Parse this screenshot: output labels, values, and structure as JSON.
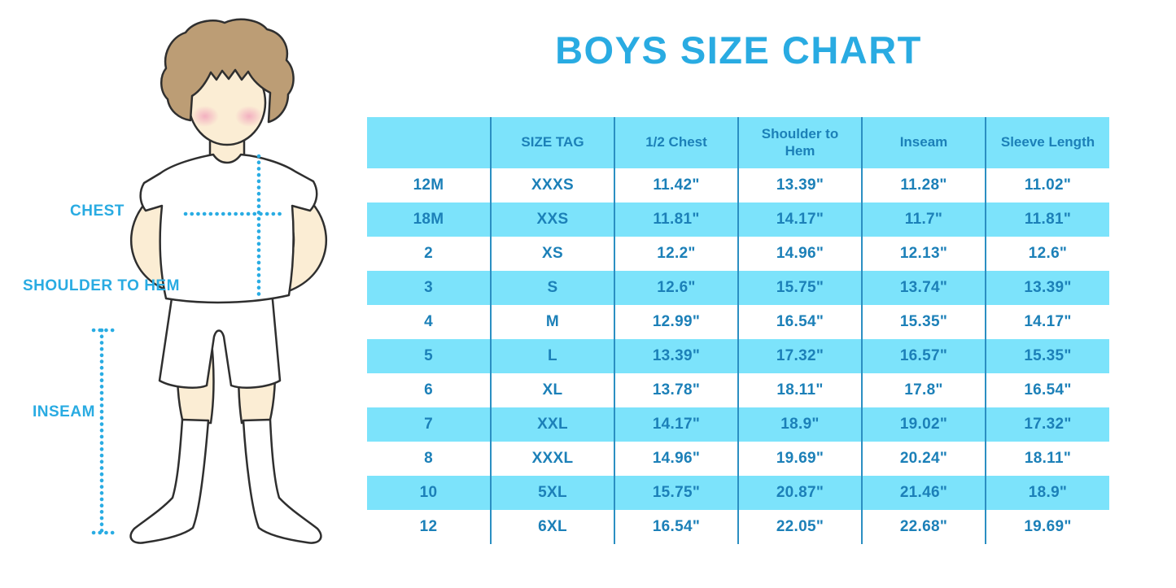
{
  "title": "BOYS SIZE CHART",
  "colors": {
    "title_blue": "#29ABE2",
    "row_cyan": "#7CE3FB",
    "table_text_blue": "#1C80B8",
    "grid_line_blue": "#2B8FC2",
    "dotted_line_cyan": "#29ACE3",
    "skin": "#FBEDD4",
    "hair_brown": "#BC9D75",
    "blush_pink": "#F2A9BE",
    "outline": "#2F2F2F"
  },
  "figure": {
    "illustration": "boy-front-view-tshirt-shorts-socks",
    "labels": {
      "chest": "CHEST",
      "shoulder_to_hem": "SHOULDER TO HEM",
      "inseam": "INSEAM"
    }
  },
  "chart_data": {
    "type": "table",
    "title": "BOYS SIZE CHART",
    "columns": [
      "",
      "SIZE TAG",
      "1/2 Chest",
      "Shoulder to Hem",
      "Inseam",
      "Sleeve Length"
    ],
    "rows": [
      [
        "12M",
        "XXXS",
        "11.42\"",
        "13.39\"",
        "11.28\"",
        "11.02\""
      ],
      [
        "18M",
        "XXS",
        "11.81\"",
        "14.17\"",
        "11.7\"",
        "11.81\""
      ],
      [
        "2",
        "XS",
        "12.2\"",
        "14.96\"",
        "12.13\"",
        "12.6\""
      ],
      [
        "3",
        "S",
        "12.6\"",
        "15.75\"",
        "13.74\"",
        "13.39\""
      ],
      [
        "4",
        "M",
        "12.99\"",
        "16.54\"",
        "15.35\"",
        "14.17\""
      ],
      [
        "5",
        "L",
        "13.39\"",
        "17.32\"",
        "16.57\"",
        "15.35\""
      ],
      [
        "6",
        "XL",
        "13.78\"",
        "18.11\"",
        "17.8\"",
        "16.54\""
      ],
      [
        "7",
        "XXL",
        "14.17\"",
        "18.9\"",
        "19.02\"",
        "17.32\""
      ],
      [
        "8",
        "XXXL",
        "14.96\"",
        "19.69\"",
        "20.24\"",
        "18.11\""
      ],
      [
        "10",
        "5XL",
        "15.75\"",
        "20.87\"",
        "21.46\"",
        "18.9\""
      ],
      [
        "12",
        "6XL",
        "16.54\"",
        "22.05\"",
        "22.68\"",
        "19.69\""
      ]
    ],
    "layout": {
      "row_striping": "white / light-cyan alternating, header cyan",
      "column_separators": true,
      "outer_border": false
    }
  }
}
